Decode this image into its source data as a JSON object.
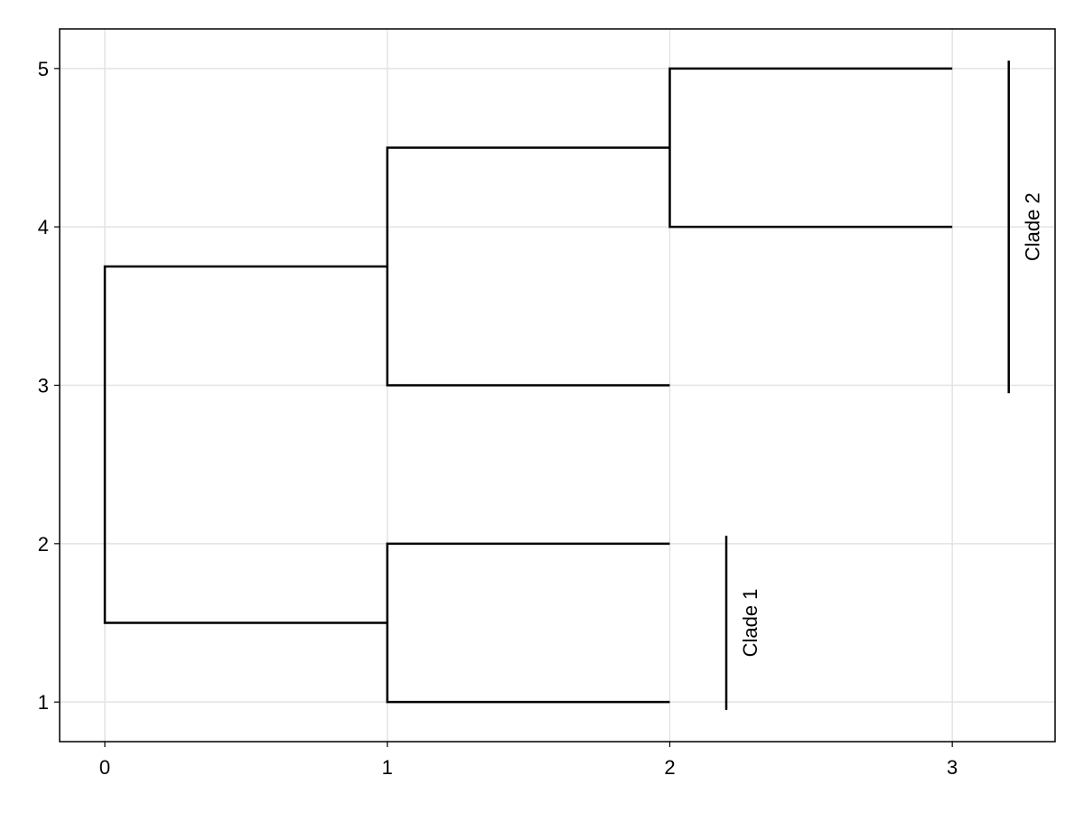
{
  "chart_data": {
    "type": "dendrogram",
    "series": [
      {
        "color": "#000000",
        "x": [
          3,
          2,
          2,
          3
        ],
        "values": [
          4,
          4,
          5,
          5
        ]
      },
      {
        "color": "#000000",
        "x": [
          2,
          1,
          1,
          2
        ],
        "values": [
          3,
          3,
          4.5,
          4.5
        ]
      },
      {
        "color": "#000000",
        "x": [
          2,
          1,
          1,
          2
        ],
        "values": [
          1,
          1,
          2,
          2
        ]
      },
      {
        "color": "#000000",
        "x": [
          1,
          0,
          0,
          1
        ],
        "values": [
          1.5,
          1.5,
          3.75,
          3.75
        ]
      }
    ],
    "annotations": [
      {
        "label": "Clade 1",
        "x": 2.2,
        "values": [
          0.95,
          2.05
        ]
      },
      {
        "label": "Clade 2",
        "x": 3.2,
        "values": [
          2.95,
          5.05
        ]
      }
    ],
    "xlim": [
      -0.16,
      3.364
    ],
    "ylim": [
      0.75,
      5.25
    ],
    "xticks": [
      0,
      1,
      2,
      3
    ],
    "yticks": [
      1,
      2,
      3,
      4,
      5
    ],
    "grid": true
  }
}
